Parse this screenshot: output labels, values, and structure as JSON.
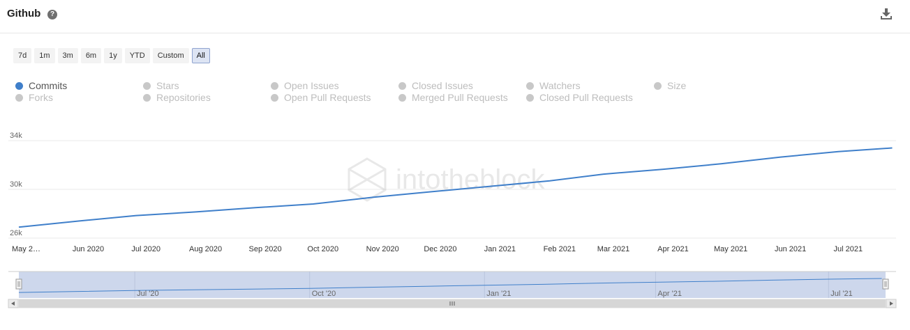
{
  "header": {
    "title": "Github",
    "help_icon": "question-circle-icon",
    "download_icon": "download-icon"
  },
  "ranges": [
    {
      "label": "7d",
      "selected": false
    },
    {
      "label": "1m",
      "selected": false
    },
    {
      "label": "3m",
      "selected": false
    },
    {
      "label": "6m",
      "selected": false
    },
    {
      "label": "1y",
      "selected": false
    },
    {
      "label": "YTD",
      "selected": false
    },
    {
      "label": "Custom",
      "selected": false
    },
    {
      "label": "All",
      "selected": true
    }
  ],
  "legend": [
    [
      {
        "label": "Commits",
        "active": true
      },
      {
        "label": "Stars",
        "active": false
      },
      {
        "label": "Open Issues",
        "active": false
      },
      {
        "label": "Closed Issues",
        "active": false
      },
      {
        "label": "Watchers",
        "active": false
      },
      {
        "label": "Size",
        "active": false
      }
    ],
    [
      {
        "label": "Forks",
        "active": false
      },
      {
        "label": "Repositories",
        "active": false
      },
      {
        "label": "Open Pull Requests",
        "active": false
      },
      {
        "label": "Merged Pull Requests",
        "active": false
      },
      {
        "label": "Closed Pull Requests",
        "active": false
      }
    ]
  ],
  "watermark": "intotheblock",
  "colors": {
    "series": "#3f7fca",
    "navigator_fill": "#cdd7ec",
    "grid": "#e9e9e9"
  },
  "chart_data": {
    "type": "line",
    "title": "",
    "xlabel": "",
    "ylabel": "",
    "ylim": [
      26000,
      34000
    ],
    "yticks": [
      26000,
      30000,
      34000
    ],
    "ytick_labels": [
      "26k",
      "30k",
      "34k"
    ],
    "x_tick_labels": [
      "May 2…",
      "Jun 2020",
      "Jul 2020",
      "Aug 2020",
      "Sep 2020",
      "Oct 2020",
      "Nov 2020",
      "Dec 2020",
      "Jan 2021",
      "Feb 2021",
      "Mar 2021",
      "Apr 2021",
      "May 2021",
      "Jun 2021",
      "Jul 2021"
    ],
    "x_tick_dates": [
      "2020-05-01",
      "2020-06-01",
      "2020-07-01",
      "2020-08-01",
      "2020-09-01",
      "2020-10-01",
      "2020-11-01",
      "2020-12-01",
      "2021-01-01",
      "2021-02-01",
      "2021-03-01",
      "2021-04-01",
      "2021-05-01",
      "2021-06-01",
      "2021-07-01"
    ],
    "xlim": [
      "2020-05-01",
      "2021-07-31"
    ],
    "series": [
      {
        "values": [
          {
            "x": "2020-05-01",
            "y": 26900
          },
          {
            "x": "2020-06-01",
            "y": 27400
          },
          {
            "x": "2020-07-01",
            "y": 27850
          },
          {
            "x": "2020-08-01",
            "y": 28150
          },
          {
            "x": "2020-09-01",
            "y": 28500
          },
          {
            "x": "2020-10-01",
            "y": 28800
          },
          {
            "x": "2020-11-01",
            "y": 29350
          },
          {
            "x": "2020-12-01",
            "y": 29800
          },
          {
            "x": "2021-01-01",
            "y": 30250
          },
          {
            "x": "2021-02-01",
            "y": 30700
          },
          {
            "x": "2021-03-01",
            "y": 31250
          },
          {
            "x": "2021-04-01",
            "y": 31650
          },
          {
            "x": "2021-05-01",
            "y": 32100
          },
          {
            "x": "2021-06-01",
            "y": 32650
          },
          {
            "x": "2021-07-01",
            "y": 33100
          },
          {
            "x": "2021-07-29",
            "y": 33400
          }
        ]
      }
    ],
    "grid": true,
    "legend_position": "top",
    "navigator": {
      "labels": [
        "Jul '20",
        "Oct '20",
        "Jan '21",
        "Apr '21",
        "Jul '21"
      ],
      "label_dates": [
        "2020-07-01",
        "2020-10-01",
        "2021-01-01",
        "2021-04-01",
        "2021-07-01"
      ]
    }
  }
}
